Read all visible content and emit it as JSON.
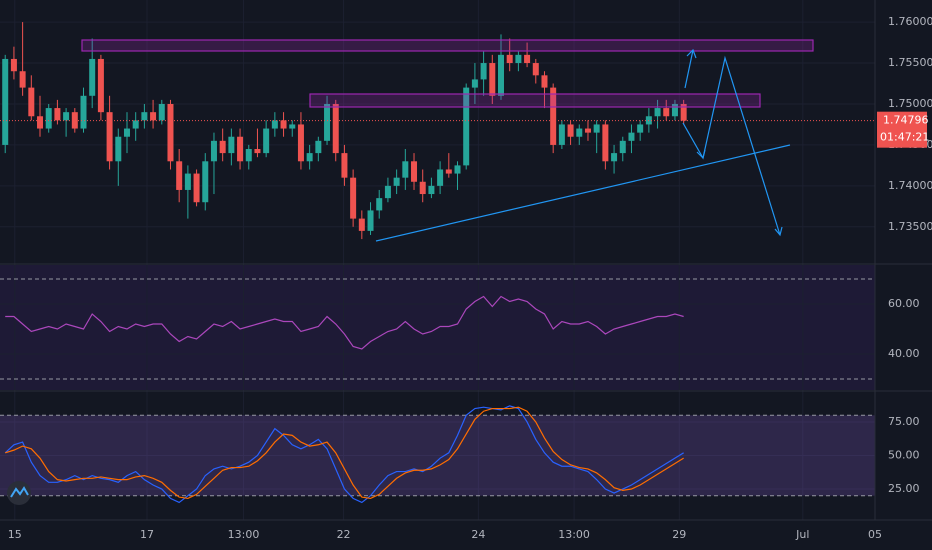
{
  "chart_data": [
    {
      "type": "candlestick",
      "up_color": "#26a69a",
      "down_color": "#ef5350",
      "ylim": [
        1.7307,
        1.7627
      ],
      "yticks": [
        {
          "value": 1.76,
          "label": "1.76000"
        },
        {
          "value": 1.755,
          "label": "1.75500"
        },
        {
          "value": 1.75,
          "label": "1.75000"
        },
        {
          "value": 1.745,
          "label": "1.74500"
        },
        {
          "value": 1.74,
          "label": "1.74000"
        },
        {
          "value": 1.735,
          "label": "1.73500"
        }
      ],
      "last_label": "1.74796",
      "countdown": "01:47:21",
      "ohlc": [
        [
          1.745,
          1.756,
          1.744,
          1.7555
        ],
        [
          1.7555,
          1.757,
          1.753,
          1.754
        ],
        [
          1.754,
          1.76,
          1.751,
          1.752
        ],
        [
          1.752,
          1.7535,
          1.748,
          1.7485
        ],
        [
          1.7485,
          1.751,
          1.746,
          1.747
        ],
        [
          1.747,
          1.75,
          1.7465,
          1.7495
        ],
        [
          1.7495,
          1.7505,
          1.7475,
          1.748
        ],
        [
          1.748,
          1.7495,
          1.746,
          1.749
        ],
        [
          1.749,
          1.7495,
          1.7465,
          1.747
        ],
        [
          1.747,
          1.752,
          1.7465,
          1.751
        ],
        [
          1.751,
          1.758,
          1.7495,
          1.7555
        ],
        [
          1.7555,
          1.756,
          1.748,
          1.749
        ],
        [
          1.749,
          1.751,
          1.742,
          1.743
        ],
        [
          1.743,
          1.747,
          1.74,
          1.746
        ],
        [
          1.746,
          1.749,
          1.744,
          1.747
        ],
        [
          1.747,
          1.749,
          1.7455,
          1.748
        ],
        [
          1.748,
          1.75,
          1.747,
          1.749
        ],
        [
          1.749,
          1.7505,
          1.747,
          1.748
        ],
        [
          1.748,
          1.7505,
          1.7475,
          1.75
        ],
        [
          1.75,
          1.7505,
          1.742,
          1.743
        ],
        [
          1.743,
          1.7445,
          1.738,
          1.7395
        ],
        [
          1.7395,
          1.7425,
          1.736,
          1.7415
        ],
        [
          1.7415,
          1.742,
          1.7375,
          1.738
        ],
        [
          1.738,
          1.744,
          1.737,
          1.743
        ],
        [
          1.743,
          1.7465,
          1.739,
          1.7455
        ],
        [
          1.7455,
          1.747,
          1.743,
          1.744
        ],
        [
          1.744,
          1.747,
          1.7425,
          1.746
        ],
        [
          1.746,
          1.747,
          1.742,
          1.743
        ],
        [
          1.743,
          1.745,
          1.742,
          1.7445
        ],
        [
          1.7445,
          1.747,
          1.7435,
          1.744
        ],
        [
          1.744,
          1.748,
          1.7435,
          1.747
        ],
        [
          1.747,
          1.749,
          1.746,
          1.748
        ],
        [
          1.748,
          1.749,
          1.746,
          1.747
        ],
        [
          1.747,
          1.748,
          1.746,
          1.7475
        ],
        [
          1.7475,
          1.749,
          1.742,
          1.743
        ],
        [
          1.743,
          1.745,
          1.742,
          1.744
        ],
        [
          1.744,
          1.746,
          1.743,
          1.7455
        ],
        [
          1.7455,
          1.751,
          1.745,
          1.75
        ],
        [
          1.75,
          1.7505,
          1.743,
          1.744
        ],
        [
          1.744,
          1.745,
          1.74,
          1.741
        ],
        [
          1.741,
          1.742,
          1.735,
          1.736
        ],
        [
          1.736,
          1.737,
          1.7335,
          1.7345
        ],
        [
          1.7345,
          1.738,
          1.734,
          1.737
        ],
        [
          1.737,
          1.7395,
          1.736,
          1.7385
        ],
        [
          1.7385,
          1.741,
          1.738,
          1.74
        ],
        [
          1.74,
          1.742,
          1.739,
          1.741
        ],
        [
          1.741,
          1.7445,
          1.7395,
          1.743
        ],
        [
          1.743,
          1.744,
          1.7395,
          1.7405
        ],
        [
          1.7405,
          1.742,
          1.738,
          1.739
        ],
        [
          1.739,
          1.741,
          1.7385,
          1.74
        ],
        [
          1.74,
          1.743,
          1.739,
          1.742
        ],
        [
          1.742,
          1.744,
          1.741,
          1.7415
        ],
        [
          1.7415,
          1.743,
          1.7395,
          1.7425
        ],
        [
          1.7425,
          1.7525,
          1.742,
          1.752
        ],
        [
          1.752,
          1.755,
          1.75,
          1.753
        ],
        [
          1.753,
          1.7565,
          1.751,
          1.755
        ],
        [
          1.755,
          1.756,
          1.75,
          1.751
        ],
        [
          1.751,
          1.7585,
          1.7505,
          1.756
        ],
        [
          1.756,
          1.758,
          1.754,
          1.755
        ],
        [
          1.755,
          1.7565,
          1.754,
          1.756
        ],
        [
          1.756,
          1.7575,
          1.7545,
          1.755
        ],
        [
          1.755,
          1.7555,
          1.7525,
          1.7535
        ],
        [
          1.7535,
          1.754,
          1.7495,
          1.752
        ],
        [
          1.752,
          1.7525,
          1.744,
          1.745
        ],
        [
          1.745,
          1.748,
          1.7445,
          1.7475
        ],
        [
          1.7475,
          1.748,
          1.745,
          1.746
        ],
        [
          1.746,
          1.7475,
          1.745,
          1.747
        ],
        [
          1.747,
          1.748,
          1.7455,
          1.7465
        ],
        [
          1.7465,
          1.748,
          1.744,
          1.7475
        ],
        [
          1.7475,
          1.748,
          1.742,
          1.743
        ],
        [
          1.743,
          1.745,
          1.7415,
          1.744
        ],
        [
          1.744,
          1.746,
          1.743,
          1.7455
        ],
        [
          1.7455,
          1.7475,
          1.744,
          1.7465
        ],
        [
          1.7465,
          1.748,
          1.7455,
          1.7475
        ],
        [
          1.7475,
          1.7495,
          1.7465,
          1.7485
        ],
        [
          1.7485,
          1.7505,
          1.747,
          1.7495
        ],
        [
          1.7495,
          1.7505,
          1.748,
          1.7485
        ],
        [
          1.7485,
          1.7505,
          1.748,
          1.75
        ],
        [
          1.75,
          1.7505,
          1.7475,
          1.74796
        ]
      ]
    },
    {
      "type": "line",
      "ylim": [
        25.6,
        75.6
      ],
      "yticks": [
        {
          "value": 60,
          "label": "60.00"
        },
        {
          "value": 40,
          "label": "40.00"
        }
      ],
      "bands": [
        30,
        70
      ],
      "series": [
        {
          "color": "#ab47bc",
          "values": [
            55,
            55,
            52,
            49,
            50,
            51,
            50,
            52,
            51,
            50,
            56,
            53,
            49,
            51,
            50,
            52,
            51,
            52,
            52,
            48,
            45,
            47,
            46,
            49,
            52,
            51,
            53,
            50,
            51,
            52,
            53,
            54,
            53,
            53,
            49,
            50,
            51,
            55,
            52,
            48,
            43,
            42,
            45,
            47,
            49,
            50,
            53,
            50,
            48,
            49,
            51,
            51,
            52,
            58,
            61,
            63,
            59,
            63,
            61,
            62,
            61,
            58,
            56,
            50,
            53,
            52,
            52,
            53,
            51,
            48,
            50,
            51,
            52,
            53,
            54,
            55,
            55,
            56,
            55
          ]
        }
      ]
    },
    {
      "type": "line",
      "ylim": [
        1.9,
        96.6
      ],
      "yticks": [
        {
          "value": 75,
          "label": "75.00"
        },
        {
          "value": 50,
          "label": "50.00"
        },
        {
          "value": 25,
          "label": "25.00"
        }
      ],
      "bands": [
        20,
        80
      ],
      "xlim": [
        -0.6,
        100
      ],
      "xticks": [
        {
          "value": 1.1,
          "label": "15"
        },
        {
          "value": 16.3,
          "label": "17"
        },
        {
          "value": 27.4,
          "label": "13:00"
        },
        {
          "value": 38.9,
          "label": "22"
        },
        {
          "value": 54.4,
          "label": "24"
        },
        {
          "value": 65.4,
          "label": "13:00"
        },
        {
          "value": 77.5,
          "label": "29"
        },
        {
          "value": 91.7,
          "label": "Jul"
        },
        {
          "value": 100,
          "label": "05"
        }
      ],
      "series": [
        {
          "color": "#2962ff",
          "values": [
            52,
            58,
            60,
            45,
            35,
            30,
            30,
            32,
            35,
            32,
            35,
            33,
            32,
            30,
            35,
            38,
            32,
            28,
            25,
            18,
            15,
            20,
            25,
            35,
            40,
            42,
            40,
            42,
            45,
            50,
            60,
            70,
            65,
            58,
            55,
            58,
            62,
            55,
            40,
            25,
            18,
            15,
            20,
            28,
            35,
            38,
            38,
            40,
            38,
            42,
            48,
            52,
            65,
            80,
            85,
            86,
            85,
            84,
            87,
            85,
            75,
            62,
            52,
            45,
            42,
            42,
            40,
            38,
            32,
            25,
            22,
            25,
            28,
            32,
            36,
            40,
            44,
            48,
            52
          ]
        },
        {
          "color": "#ff6d00",
          "values": [
            52,
            54,
            57,
            55,
            48,
            38,
            32,
            31,
            32,
            33,
            33,
            34,
            33,
            32,
            32,
            34,
            35,
            33,
            30,
            24,
            19,
            18,
            21,
            27,
            33,
            39,
            41,
            41,
            42,
            46,
            52,
            60,
            66,
            65,
            60,
            57,
            58,
            60,
            52,
            40,
            28,
            19,
            18,
            21,
            27,
            33,
            37,
            39,
            39,
            40,
            43,
            47,
            55,
            66,
            77,
            83,
            85,
            85,
            85,
            86,
            83,
            75,
            63,
            53,
            47,
            43,
            41,
            40,
            37,
            32,
            26,
            24,
            25,
            28,
            32,
            36,
            40,
            44,
            48
          ]
        }
      ]
    }
  ]
}
